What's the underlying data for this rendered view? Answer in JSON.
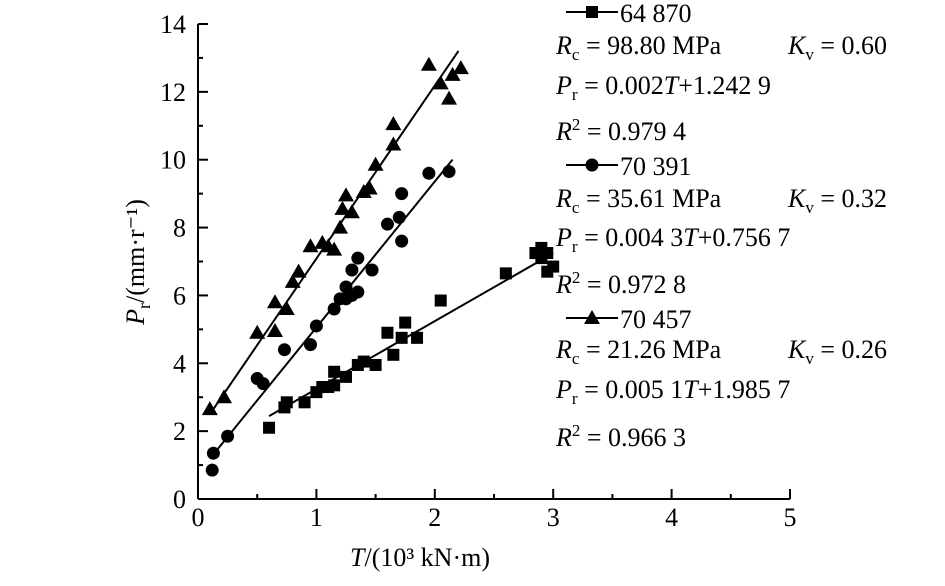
{
  "chart_data": {
    "type": "scatter",
    "xlabel": "T/(10³ kN·m)",
    "ylabel": "Pr/(mm·r⁻¹)",
    "xlim": [
      0,
      5
    ],
    "ylim": [
      0,
      14
    ],
    "xticks": [
      "0",
      "1",
      "2",
      "3",
      "4",
      "5"
    ],
    "yticks": [
      "0",
      "2",
      "4",
      "6",
      "8",
      "10",
      "12",
      "14"
    ],
    "grid": false,
    "legend_position": "top-right",
    "series": [
      {
        "name": "64 870",
        "marker": "square",
        "color": "#000000",
        "rc_text": "R c = 98.80 MPa",
        "kv_text": "K v = 0.60",
        "eq_text": "P r = 0.002T+1.242 9",
        "r2_text": "R2 = 0.979 4",
        "fit": {
          "slope": 0.002,
          "intercept": 1.2429,
          "x_range": [
            0.6,
            3.0
          ]
        },
        "points": [
          [
            0.6,
            2.1
          ],
          [
            0.73,
            2.7
          ],
          [
            0.75,
            2.85
          ],
          [
            0.9,
            2.85
          ],
          [
            1.0,
            3.15
          ],
          [
            1.05,
            3.3
          ],
          [
            1.1,
            3.3
          ],
          [
            1.15,
            3.35
          ],
          [
            1.15,
            3.75
          ],
          [
            1.25,
            3.6
          ],
          [
            1.35,
            3.95
          ],
          [
            1.4,
            4.05
          ],
          [
            1.5,
            3.95
          ],
          [
            1.6,
            4.9
          ],
          [
            1.65,
            4.25
          ],
          [
            1.72,
            4.75
          ],
          [
            1.75,
            5.2
          ],
          [
            1.85,
            4.75
          ],
          [
            2.05,
            5.85
          ],
          [
            2.6,
            6.65
          ],
          [
            2.85,
            7.25
          ],
          [
            2.9,
            7.4
          ],
          [
            2.9,
            7.1
          ],
          [
            2.95,
            6.7
          ],
          [
            2.95,
            7.25
          ],
          [
            3.0,
            6.85
          ]
        ]
      },
      {
        "name": "70 391",
        "marker": "circle",
        "color": "#000000",
        "rc_text": "R c = 35.61 MPa",
        "kv_text": "K v = 0.32",
        "eq_text": "P r = 0.004 3T+0.756 7",
        "r2_text": "R2 = 0.972 8",
        "fit": {
          "slope": 0.0043,
          "intercept": 0.7567,
          "x_range": [
            0.1,
            2.15
          ]
        },
        "points": [
          [
            0.12,
            0.85
          ],
          [
            0.13,
            1.35
          ],
          [
            0.25,
            1.85
          ],
          [
            0.5,
            3.55
          ],
          [
            0.55,
            3.4
          ],
          [
            0.73,
            4.4
          ],
          [
            0.95,
            4.55
          ],
          [
            1.0,
            5.1
          ],
          [
            1.15,
            5.6
          ],
          [
            1.2,
            5.9
          ],
          [
            1.25,
            6.25
          ],
          [
            1.25,
            5.9
          ],
          [
            1.3,
            6.75
          ],
          [
            1.3,
            6.0
          ],
          [
            1.35,
            6.1
          ],
          [
            1.35,
            7.1
          ],
          [
            1.47,
            6.75
          ],
          [
            1.6,
            8.1
          ],
          [
            1.7,
            8.3
          ],
          [
            1.72,
            9.0
          ],
          [
            1.72,
            7.6
          ],
          [
            1.95,
            9.6
          ],
          [
            2.12,
            9.65
          ]
        ]
      },
      {
        "name": "70 457",
        "marker": "triangle",
        "color": "#000000",
        "rc_text": "R c = 21.26 MPa",
        "kv_text": "K v = 0.26",
        "eq_text": "P r = 0.005 1T+1.985 7",
        "r2_text": "R2 = 0.966 3",
        "fit": {
          "slope": 0.0051,
          "intercept": 1.9857,
          "x_range": [
            0.1,
            2.2
          ]
        },
        "points": [
          [
            0.1,
            2.65
          ],
          [
            0.22,
            3.0
          ],
          [
            0.5,
            4.9
          ],
          [
            0.65,
            4.95
          ],
          [
            0.65,
            5.8
          ],
          [
            0.75,
            5.6
          ],
          [
            0.8,
            6.4
          ],
          [
            0.85,
            6.7
          ],
          [
            0.95,
            7.45
          ],
          [
            1.05,
            7.55
          ],
          [
            1.1,
            7.45
          ],
          [
            1.15,
            7.35
          ],
          [
            1.2,
            8.0
          ],
          [
            1.22,
            8.55
          ],
          [
            1.25,
            8.95
          ],
          [
            1.3,
            8.45
          ],
          [
            1.4,
            9.05
          ],
          [
            1.45,
            9.15
          ],
          [
            1.5,
            9.85
          ],
          [
            1.65,
            11.05
          ],
          [
            1.65,
            10.45
          ],
          [
            1.95,
            12.8
          ],
          [
            2.05,
            12.25
          ],
          [
            2.12,
            11.8
          ],
          [
            2.15,
            12.5
          ],
          [
            2.22,
            12.7
          ]
        ]
      }
    ]
  }
}
